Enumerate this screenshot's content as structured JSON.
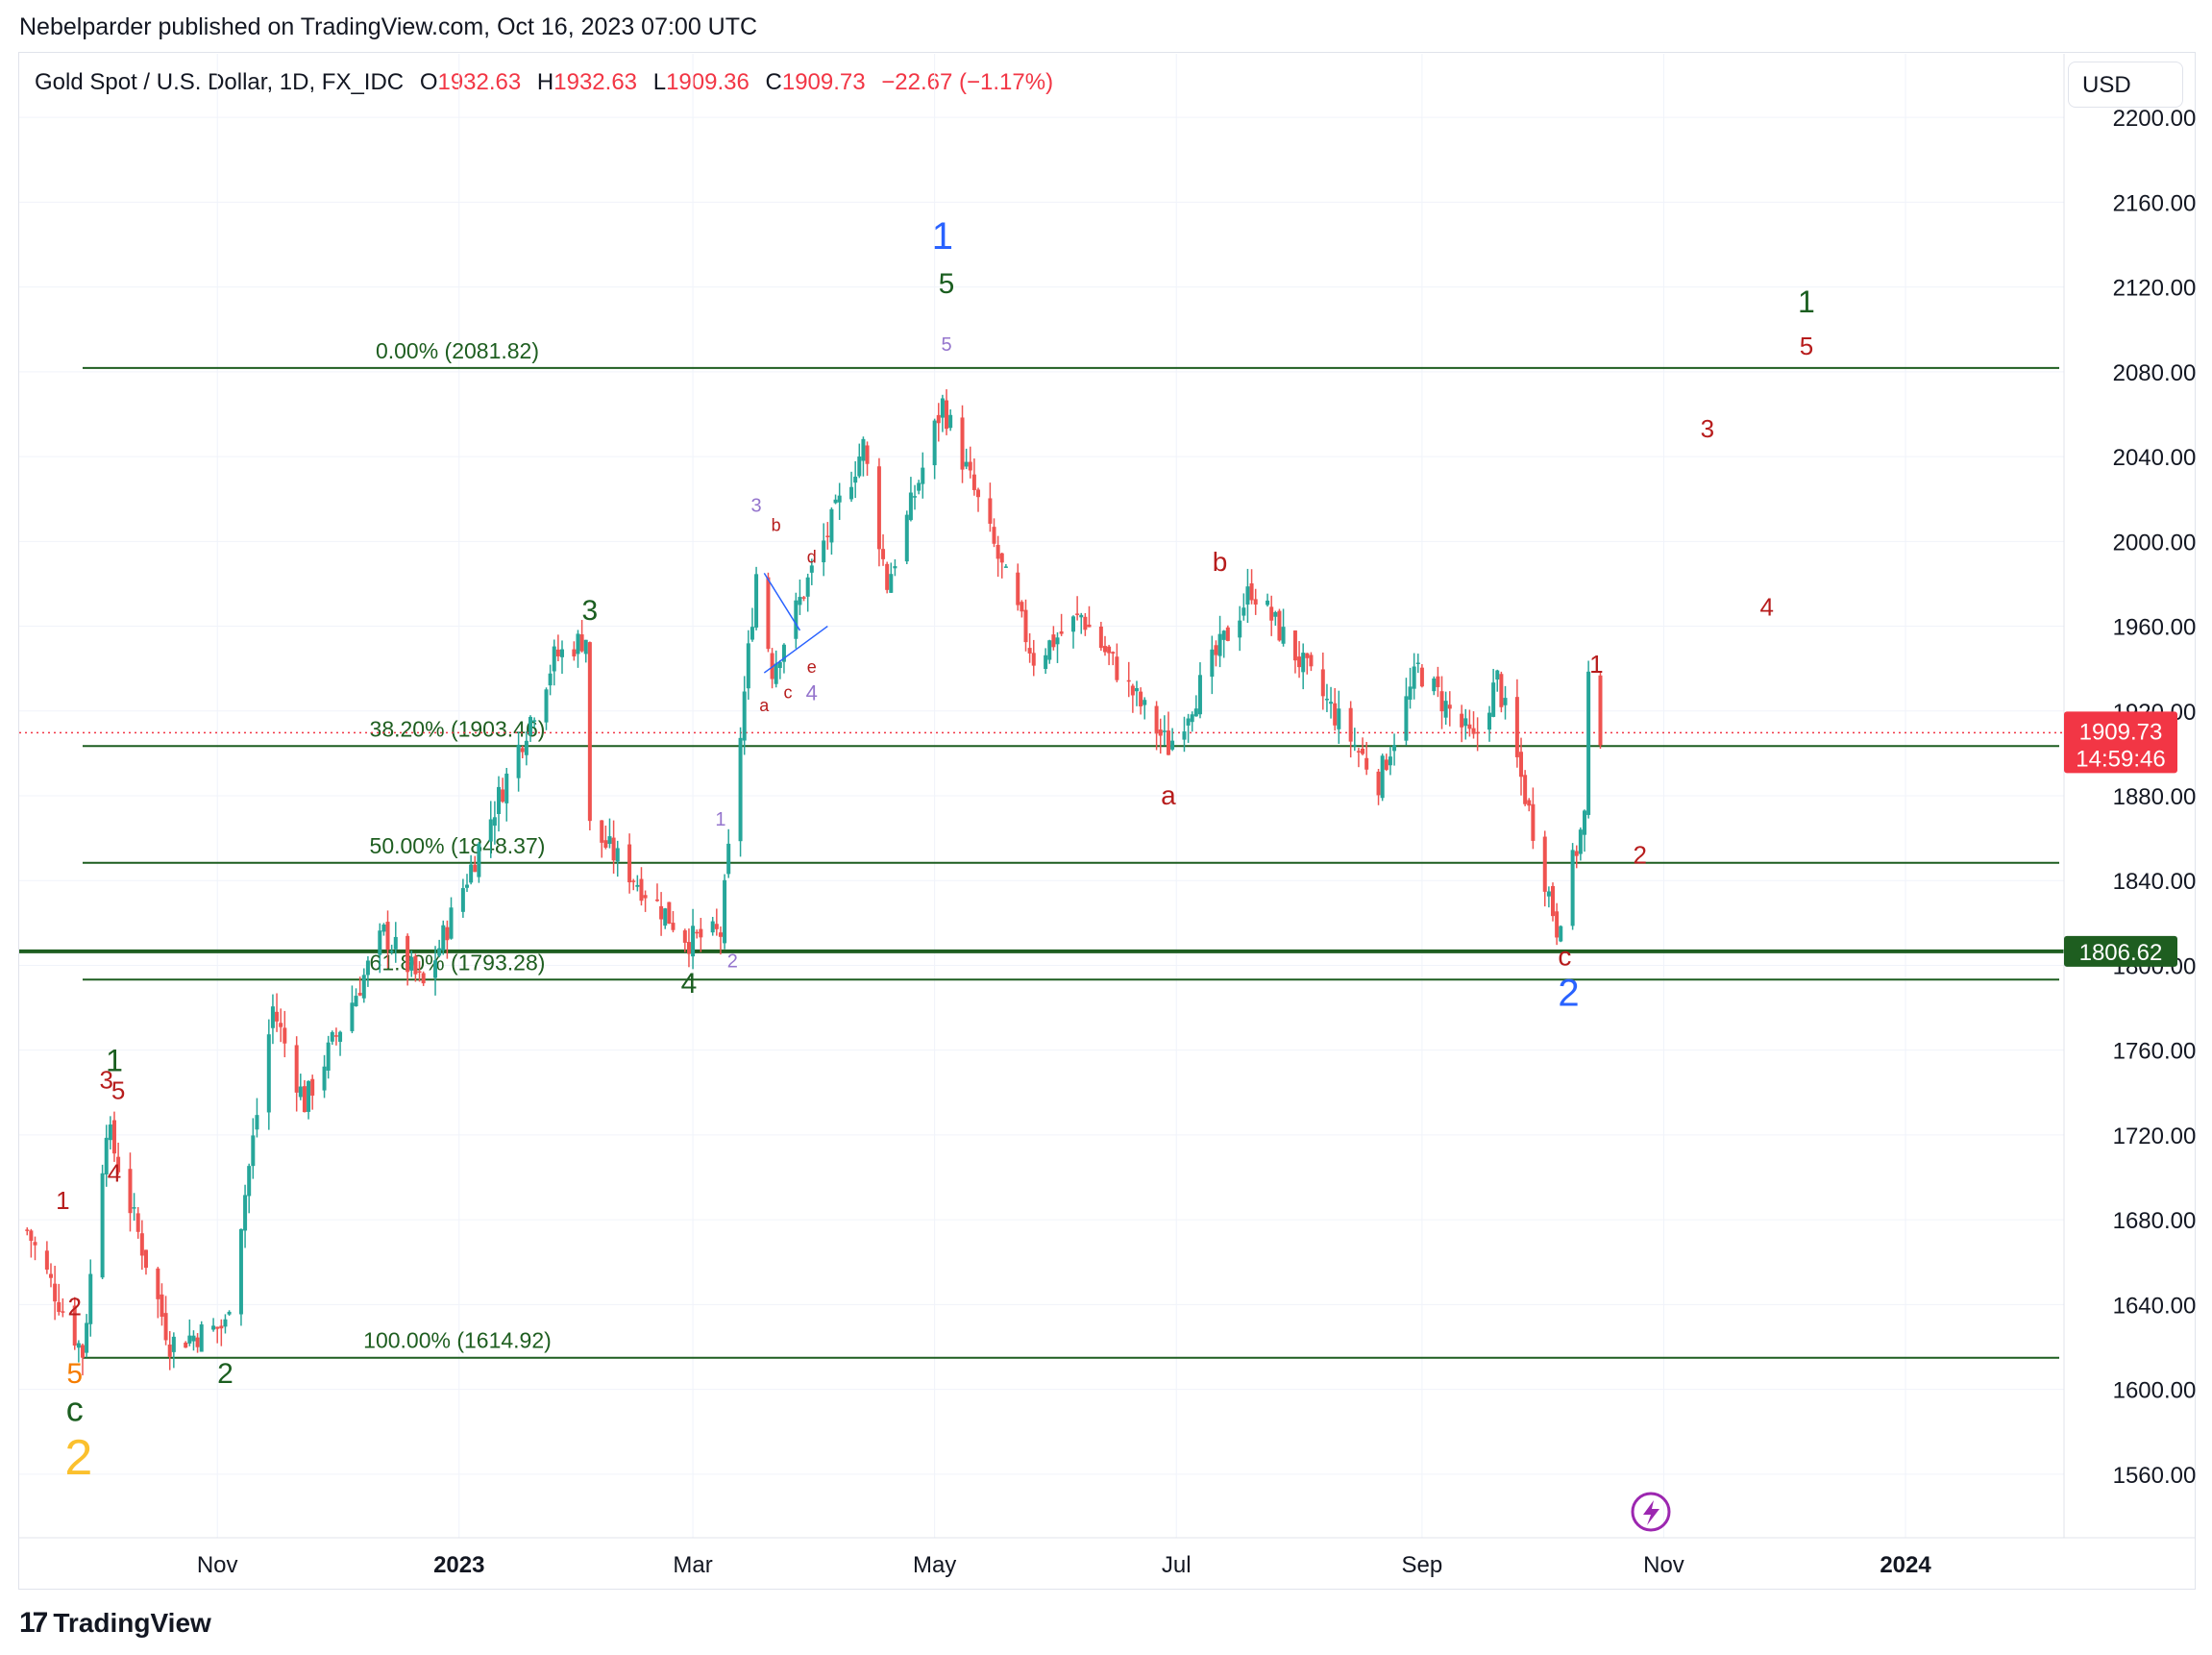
{
  "header": {
    "published": "Nebelparder published on TradingView.com, Oct 16, 2023 07:00 UTC"
  },
  "legend": {
    "symbol": "Gold Spot / U.S. Dollar, 1D, FX_IDC",
    "o_label": "O",
    "o_value": "1932.63",
    "h_label": "H",
    "h_value": "1932.63",
    "l_label": "L",
    "l_value": "1909.36",
    "c_label": "C",
    "c_value": "1909.73",
    "change": "−22.67 (−1.17%)"
  },
  "currency_button": "USD",
  "brand": {
    "logo_text": "17",
    "name": "TradingView"
  },
  "colors": {
    "up": "#26a69a",
    "down": "#ef5350",
    "fib": "#1e5e20",
    "price_badge": "#f23645",
    "level_badge": "#1e5e20",
    "wave_blue": "#2962ff",
    "wave_green": "#1b5e20",
    "wave_red": "#b71c1c",
    "wave_purple": "#9575cd",
    "wave_orange": "#f57c00",
    "wave_gold": "#fbc02d",
    "alert_icon": "#9c27b0"
  },
  "alert_icon": "lightning-icon",
  "chart_data": {
    "type": "candlestick",
    "ylim": [
      1530,
      2230
    ],
    "y_ticks": [
      "2200.00",
      "2160.00",
      "2120.00",
      "2080.00",
      "2040.00",
      "2000.00",
      "1960.00",
      "1920.00",
      "1880.00",
      "1840.00",
      "1800.00",
      "1760.00",
      "1720.00",
      "1680.00",
      "1640.00",
      "1600.00",
      "1560.00"
    ],
    "x_ticks": [
      {
        "label": "Nov",
        "date": "2022-11-01",
        "bold": false
      },
      {
        "label": "2023",
        "date": "2023-01-01",
        "bold": true
      },
      {
        "label": "Mar",
        "date": "2023-03-01",
        "bold": false
      },
      {
        "label": "May",
        "date": "2023-05-01",
        "bold": false
      },
      {
        "label": "Jul",
        "date": "2023-07-01",
        "bold": false
      },
      {
        "label": "Sep",
        "date": "2023-09-01",
        "bold": false
      },
      {
        "label": "Nov",
        "date": "2023-11-01",
        "bold": false
      },
      {
        "label": "2024",
        "date": "2024-01-01",
        "bold": true
      }
    ],
    "x_range": [
      "2022-09-12",
      "2024-02-10"
    ],
    "last_price": {
      "value": 1909.73,
      "label": "1909.73",
      "countdown": "14:59:46"
    },
    "horizontal_level": {
      "value": 1806.62,
      "label": "1806.62"
    },
    "fibonacci": [
      {
        "label": "0.00% (2081.82)",
        "value": 2081.82,
        "start": "2022-09-28"
      },
      {
        "label": "38.20% (1903.46)",
        "value": 1903.46,
        "start": "2022-09-28"
      },
      {
        "label": "50.00% (1848.37)",
        "value": 1848.37,
        "start": "2022-09-28"
      },
      {
        "label": "61.80% (1793.28)",
        "value": 1793.28,
        "start": "2022-09-28"
      },
      {
        "label": "100.00% (1614.92)",
        "value": 1614.92,
        "start": "2022-09-28"
      }
    ],
    "anchors": [
      {
        "date": "2022-09-14",
        "price": 1675
      },
      {
        "date": "2022-09-28",
        "price": 1617
      },
      {
        "date": "2022-10-04",
        "price": 1725
      },
      {
        "date": "2022-10-20",
        "price": 1622
      },
      {
        "date": "2022-11-03",
        "price": 1630
      },
      {
        "date": "2022-11-15",
        "price": 1780
      },
      {
        "date": "2022-11-23",
        "price": 1735
      },
      {
        "date": "2022-12-13",
        "price": 1815
      },
      {
        "date": "2022-12-23",
        "price": 1790
      },
      {
        "date": "2023-01-25",
        "price": 1945
      },
      {
        "date": "2023-02-02",
        "price": 1955
      },
      {
        "date": "2023-02-03",
        "price": 1865
      },
      {
        "date": "2023-02-28",
        "price": 1812
      },
      {
        "date": "2023-03-08",
        "price": 1815
      },
      {
        "date": "2023-03-17",
        "price": 1985
      },
      {
        "date": "2023-03-21",
        "price": 1940
      },
      {
        "date": "2023-04-13",
        "price": 2045
      },
      {
        "date": "2023-04-19",
        "price": 1980
      },
      {
        "date": "2023-05-03",
        "price": 2065
      },
      {
        "date": "2023-05-26",
        "price": 1945
      },
      {
        "date": "2023-06-07",
        "price": 1965
      },
      {
        "date": "2023-06-29",
        "price": 1903
      },
      {
        "date": "2023-07-20",
        "price": 1978
      },
      {
        "date": "2023-08-21",
        "price": 1887
      },
      {
        "date": "2023-08-31",
        "price": 1940
      },
      {
        "date": "2023-09-14",
        "price": 1905
      },
      {
        "date": "2023-09-20",
        "price": 1935
      },
      {
        "date": "2023-10-05",
        "price": 1818
      },
      {
        "date": "2023-10-12",
        "price": 1870
      },
      {
        "date": "2023-10-13",
        "price": 1932
      },
      {
        "date": "2023-10-16",
        "price": 1910
      }
    ],
    "wave_labels": [
      {
        "text": "1",
        "date": "2023-05-03",
        "price": 2138,
        "color": "wave_blue",
        "size": 40
      },
      {
        "text": "5",
        "date": "2023-05-04",
        "price": 2117,
        "color": "wave_green",
        "size": 30
      },
      {
        "text": "5",
        "date": "2023-05-04",
        "price": 2090,
        "color": "wave_purple",
        "size": 20
      },
      {
        "text": "3",
        "date": "2023-02-03",
        "price": 1963,
        "color": "wave_green",
        "size": 30
      },
      {
        "text": "3",
        "date": "2023-03-17",
        "price": 2014,
        "color": "wave_purple",
        "size": 20
      },
      {
        "text": "b",
        "date": "2023-03-22",
        "price": 2005,
        "color": "wave_red",
        "size": 18
      },
      {
        "text": "d",
        "date": "2023-03-31",
        "price": 1990,
        "color": "wave_red",
        "size": 18
      },
      {
        "text": "e",
        "date": "2023-03-31",
        "price": 1938,
        "color": "wave_red",
        "size": 18
      },
      {
        "text": "4",
        "date": "2023-03-31",
        "price": 1925,
        "color": "wave_purple",
        "size": 22
      },
      {
        "text": "a",
        "date": "2023-03-19",
        "price": 1920,
        "color": "wave_red",
        "size": 18
      },
      {
        "text": "c",
        "date": "2023-03-25",
        "price": 1926,
        "color": "wave_red",
        "size": 18
      },
      {
        "text": "1",
        "date": "2023-03-08",
        "price": 1866,
        "color": "wave_purple",
        "size": 20
      },
      {
        "text": "2",
        "date": "2023-03-11",
        "price": 1799,
        "color": "wave_purple",
        "size": 20
      },
      {
        "text": "4",
        "date": "2023-02-28",
        "price": 1787,
        "color": "wave_green",
        "size": 30
      },
      {
        "text": "b",
        "date": "2023-07-12",
        "price": 1986,
        "color": "wave_red",
        "size": 28
      },
      {
        "text": "a",
        "date": "2023-06-29",
        "price": 1876,
        "color": "wave_red",
        "size": 28
      },
      {
        "text": "1",
        "date": "2023-10-15",
        "price": 1938,
        "color": "wave_red",
        "size": 26
      },
      {
        "text": "2",
        "date": "2023-10-26",
        "price": 1848,
        "color": "wave_red",
        "size": 26
      },
      {
        "text": "3",
        "date": "2023-11-12",
        "price": 2049,
        "color": "wave_red",
        "size": 26
      },
      {
        "text": "4",
        "date": "2023-11-27",
        "price": 1965,
        "color": "wave_red",
        "size": 26
      },
      {
        "text": "5",
        "date": "2023-12-07",
        "price": 2088,
        "color": "wave_red",
        "size": 26
      },
      {
        "text": "1",
        "date": "2023-12-07",
        "price": 2108,
        "color": "wave_green",
        "size": 32
      },
      {
        "text": "c",
        "date": "2023-10-07",
        "price": 1800,
        "color": "wave_red",
        "size": 28
      },
      {
        "text": "2",
        "date": "2023-10-08",
        "price": 1781,
        "color": "wave_blue",
        "size": 40
      },
      {
        "text": "1",
        "date": "2022-09-23",
        "price": 1685,
        "color": "wave_red",
        "size": 26
      },
      {
        "text": "2",
        "date": "2022-09-26",
        "price": 1635,
        "color": "wave_red",
        "size": 26
      },
      {
        "text": "3",
        "date": "2022-10-04",
        "price": 1742,
        "color": "wave_red",
        "size": 26
      },
      {
        "text": "1",
        "date": "2022-10-06",
        "price": 1750,
        "color": "wave_green",
        "size": 32
      },
      {
        "text": "5",
        "date": "2022-10-07",
        "price": 1737,
        "color": "wave_red",
        "size": 26
      },
      {
        "text": "4",
        "date": "2022-10-06",
        "price": 1698,
        "color": "wave_red",
        "size": 26
      },
      {
        "text": "2",
        "date": "2022-11-03",
        "price": 1603,
        "color": "wave_green",
        "size": 30
      },
      {
        "text": "5",
        "date": "2022-09-26",
        "price": 1603,
        "color": "wave_orange",
        "size": 30
      },
      {
        "text": "c",
        "date": "2022-09-26",
        "price": 1585,
        "color": "wave_green",
        "size": 36
      },
      {
        "text": "2",
        "date": "2022-09-27",
        "price": 1560,
        "color": "wave_gold",
        "size": 52
      }
    ]
  }
}
